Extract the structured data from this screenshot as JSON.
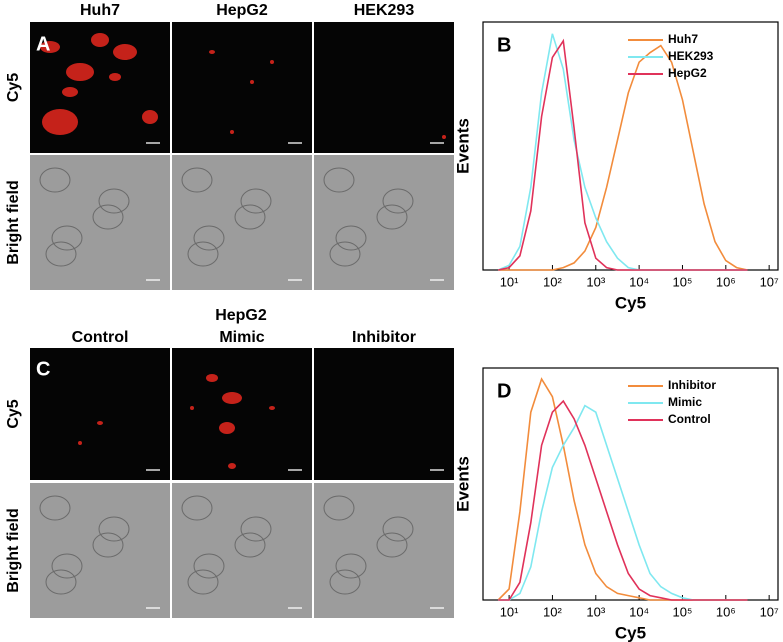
{
  "panel_a": {
    "label": "A",
    "columns": [
      "Huh7",
      "HepG2",
      "HEK293"
    ],
    "rows": [
      "Cy5",
      "Bright field"
    ]
  },
  "panel_c": {
    "label": "C",
    "group": "HepG2",
    "columns": [
      "Control",
      "Mimic",
      "Inhibitor"
    ],
    "rows": [
      "Cy5",
      "Bright field"
    ]
  },
  "chart_data": [
    {
      "type": "line",
      "panel_label": "B",
      "x_label": "Cy5",
      "y_label": "Events",
      "xscale": "log",
      "xlim": [
        2.5,
        16000000
      ],
      "ylim": [
        0,
        105
      ],
      "legend": "upper right",
      "xticks": [
        {
          "value": 10,
          "label": "10¹"
        },
        {
          "value": 100,
          "label": "10²"
        },
        {
          "value": 1000,
          "label": "10³"
        },
        {
          "value": 10000,
          "label": "10⁴"
        },
        {
          "value": 100000,
          "label": "10⁵"
        },
        {
          "value": 1000000,
          "label": "10⁶"
        },
        {
          "value": 10000000,
          "label": "10⁷"
        }
      ],
      "x": [
        5.6,
        10,
        17.8,
        31.6,
        56.2,
        100,
        178,
        316,
        562,
        1000,
        1778,
        3162,
        5623,
        10000,
        17783,
        31623,
        56234,
        100000,
        177828,
        316228,
        562341,
        1000000,
        1778279,
        3162278
      ],
      "series": [
        {
          "name": "Huh7",
          "color": "#f28c3c",
          "values": [
            0,
            0,
            0,
            0,
            0,
            0,
            1,
            3,
            8,
            18,
            35,
            55,
            75,
            88,
            92,
            95,
            88,
            72,
            50,
            28,
            12,
            4,
            1,
            0
          ]
        },
        {
          "name": "HEK293",
          "color": "#7fe8f0",
          "values": [
            0,
            2,
            10,
            35,
            75,
            100,
            85,
            55,
            35,
            22,
            12,
            5,
            1,
            0,
            0,
            0,
            0,
            0,
            0,
            0,
            0,
            0,
            0,
            0
          ]
        },
        {
          "name": "HepG2",
          "color": "#e0325a",
          "values": [
            0,
            1,
            6,
            25,
            65,
            90,
            97,
            60,
            20,
            5,
            1,
            0,
            0,
            0,
            0,
            0,
            0,
            0,
            0,
            0,
            0,
            0,
            0,
            0
          ]
        }
      ]
    },
    {
      "type": "line",
      "panel_label": "D",
      "x_label": "Cy5",
      "y_label": "Events",
      "xscale": "log",
      "xlim": [
        2.5,
        16000000
      ],
      "ylim": [
        0,
        105
      ],
      "legend": "upper right",
      "xticks": [
        {
          "value": 10,
          "label": "10¹"
        },
        {
          "value": 100,
          "label": "10²"
        },
        {
          "value": 1000,
          "label": "10³"
        },
        {
          "value": 10000,
          "label": "10⁴"
        },
        {
          "value": 100000,
          "label": "10⁵"
        },
        {
          "value": 1000000,
          "label": "10⁶"
        },
        {
          "value": 10000000,
          "label": "10⁷"
        }
      ],
      "x": [
        5.6,
        10,
        17.8,
        31.6,
        56.2,
        100,
        178,
        316,
        562,
        1000,
        1778,
        3162,
        5623,
        10000,
        17783,
        31623,
        56234,
        100000,
        177828,
        316228,
        562341,
        1000000,
        1778279,
        3162278
      ],
      "series": [
        {
          "name": "Inhibitor",
          "color": "#f28c3c",
          "values": [
            0,
            5,
            40,
            85,
            100,
            92,
            70,
            45,
            25,
            12,
            6,
            3,
            2,
            1,
            0,
            0,
            0,
            0,
            0,
            0,
            0,
            0,
            0,
            0
          ]
        },
        {
          "name": "Mimic",
          "color": "#7fe8f0",
          "values": [
            0,
            0,
            3,
            15,
            40,
            60,
            70,
            78,
            88,
            85,
            70,
            55,
            40,
            25,
            12,
            6,
            3,
            1,
            0,
            0,
            0,
            0,
            0,
            0
          ]
        },
        {
          "name": "Control",
          "color": "#e0325a",
          "values": [
            0,
            0,
            8,
            35,
            70,
            85,
            90,
            82,
            70,
            55,
            40,
            25,
            12,
            5,
            2,
            1,
            0,
            0,
            0,
            0,
            0,
            0,
            0,
            0
          ]
        }
      ]
    }
  ]
}
